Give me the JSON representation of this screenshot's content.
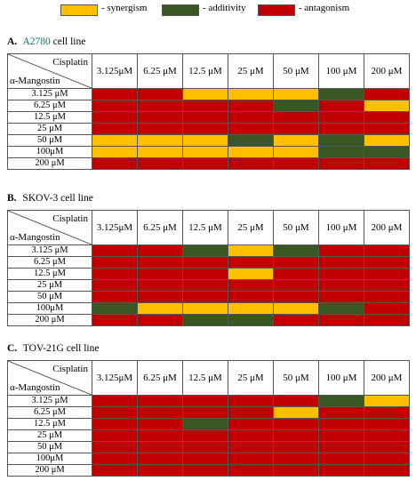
{
  "legend": [
    {
      "color": "#ffc000",
      "label": "- synergism"
    },
    {
      "color": "#385723",
      "label": "- additivity"
    },
    {
      "color": "#c00000",
      "label": "- antagonism"
    }
  ],
  "corner": {
    "top": "Cisplatin",
    "bottom": "α-Mangostin"
  },
  "panels": [
    {
      "letter": "A.",
      "line": "A2780",
      "suffix": "cell line",
      "columns": [
        "3.125μM",
        "6.25 μM",
        "12.5 μM",
        "25 μM",
        "50 μM",
        "100 μM",
        "200 μM"
      ],
      "rows": [
        {
          "label": "3.125 μM",
          "cells": [
            "antagonism",
            "antagonism",
            "synergism",
            "synergism",
            "synergism",
            "additivity",
            "antagonism"
          ]
        },
        {
          "label": "6.25 μM",
          "cells": [
            "antagonism",
            "antagonism",
            "antagonism",
            "antagonism",
            "additivity",
            "antagonism",
            "synergism"
          ]
        },
        {
          "label": "12.5 μM",
          "cells": [
            "antagonism",
            "antagonism",
            "antagonism",
            "antagonism",
            "antagonism",
            "antagonism",
            "antagonism"
          ]
        },
        {
          "label": "25 μM",
          "cells": [
            "antagonism",
            "antagonism",
            "antagonism",
            "antagonism",
            "antagonism",
            "antagonism",
            "antagonism"
          ]
        },
        {
          "label": "50 μM",
          "cells": [
            "synergism",
            "synergism",
            "synergism",
            "additivity",
            "synergism",
            "additivity",
            "synergism"
          ]
        },
        {
          "label": "100μM",
          "cells": [
            "synergism",
            "synergism",
            "synergism",
            "synergism",
            "synergism",
            "additivity",
            "additivity"
          ]
        },
        {
          "label": "200 μM",
          "cells": [
            "antagonism",
            "antagonism",
            "antagonism",
            "antagonism",
            "antagonism",
            "antagonism",
            "antagonism"
          ]
        }
      ]
    },
    {
      "letter": "B.",
      "line": "SKOV-3",
      "suffix": "cell line",
      "columns": [
        "3.125μM",
        "6.25 μM",
        "12.5 μM",
        "25 μM",
        "50 μM",
        "100 μM",
        "200 μM"
      ],
      "rows": [
        {
          "label": "3.125 μM",
          "cells": [
            "antagonism",
            "antagonism",
            "additivity",
            "synergism",
            "additivity",
            "antagonism",
            "antagonism"
          ]
        },
        {
          "label": "6.25 μM",
          "cells": [
            "antagonism",
            "antagonism",
            "antagonism",
            "antagonism",
            "antagonism",
            "antagonism",
            "antagonism"
          ]
        },
        {
          "label": "12.5 μM",
          "cells": [
            "antagonism",
            "antagonism",
            "antagonism",
            "synergism",
            "antagonism",
            "antagonism",
            "antagonism"
          ]
        },
        {
          "label": "25 μM",
          "cells": [
            "antagonism",
            "antagonism",
            "antagonism",
            "antagonism",
            "antagonism",
            "antagonism",
            "antagonism"
          ]
        },
        {
          "label": "50 μM",
          "cells": [
            "antagonism",
            "antagonism",
            "antagonism",
            "antagonism",
            "antagonism",
            "antagonism",
            "antagonism"
          ]
        },
        {
          "label": "100μM",
          "cells": [
            "additivity",
            "synergism",
            "synergism",
            "synergism",
            "synergism",
            "additivity",
            "antagonism"
          ]
        },
        {
          "label": "200 μM",
          "cells": [
            "antagonism",
            "antagonism",
            "additivity",
            "additivity",
            "antagonism",
            "antagonism",
            "antagonism"
          ]
        }
      ]
    },
    {
      "letter": "C.",
      "line": "TOV-21G",
      "suffix": "cell line",
      "columns": [
        "3.125μM",
        "6.25 μM",
        "12.5 μM",
        "25 μM",
        "50 μM",
        "100 μM",
        "200 μM"
      ],
      "rows": [
        {
          "label": "3.125 μM",
          "cells": [
            "antagonism",
            "antagonism",
            "antagonism",
            "antagonism",
            "antagonism",
            "additivity",
            "synergism"
          ]
        },
        {
          "label": "6.25 μM",
          "cells": [
            "antagonism",
            "antagonism",
            "antagonism",
            "antagonism",
            "synergism",
            "antagonism",
            "antagonism"
          ]
        },
        {
          "label": "12.5 μM",
          "cells": [
            "antagonism",
            "antagonism",
            "additivity",
            "antagonism",
            "antagonism",
            "antagonism",
            "antagonism"
          ]
        },
        {
          "label": "25 μM",
          "cells": [
            "antagonism",
            "antagonism",
            "antagonism",
            "antagonism",
            "antagonism",
            "antagonism",
            "antagonism"
          ]
        },
        {
          "label": "50 μM",
          "cells": [
            "antagonism",
            "antagonism",
            "antagonism",
            "antagonism",
            "antagonism",
            "antagonism",
            "antagonism"
          ]
        },
        {
          "label": "100μM",
          "cells": [
            "antagonism",
            "antagonism",
            "antagonism",
            "antagonism",
            "antagonism",
            "antagonism",
            "antagonism"
          ]
        },
        {
          "label": "200 μM",
          "cells": [
            "antagonism",
            "antagonism",
            "antagonism",
            "antagonism",
            "antagonism",
            "antagonism",
            "antagonism"
          ]
        }
      ]
    }
  ]
}
